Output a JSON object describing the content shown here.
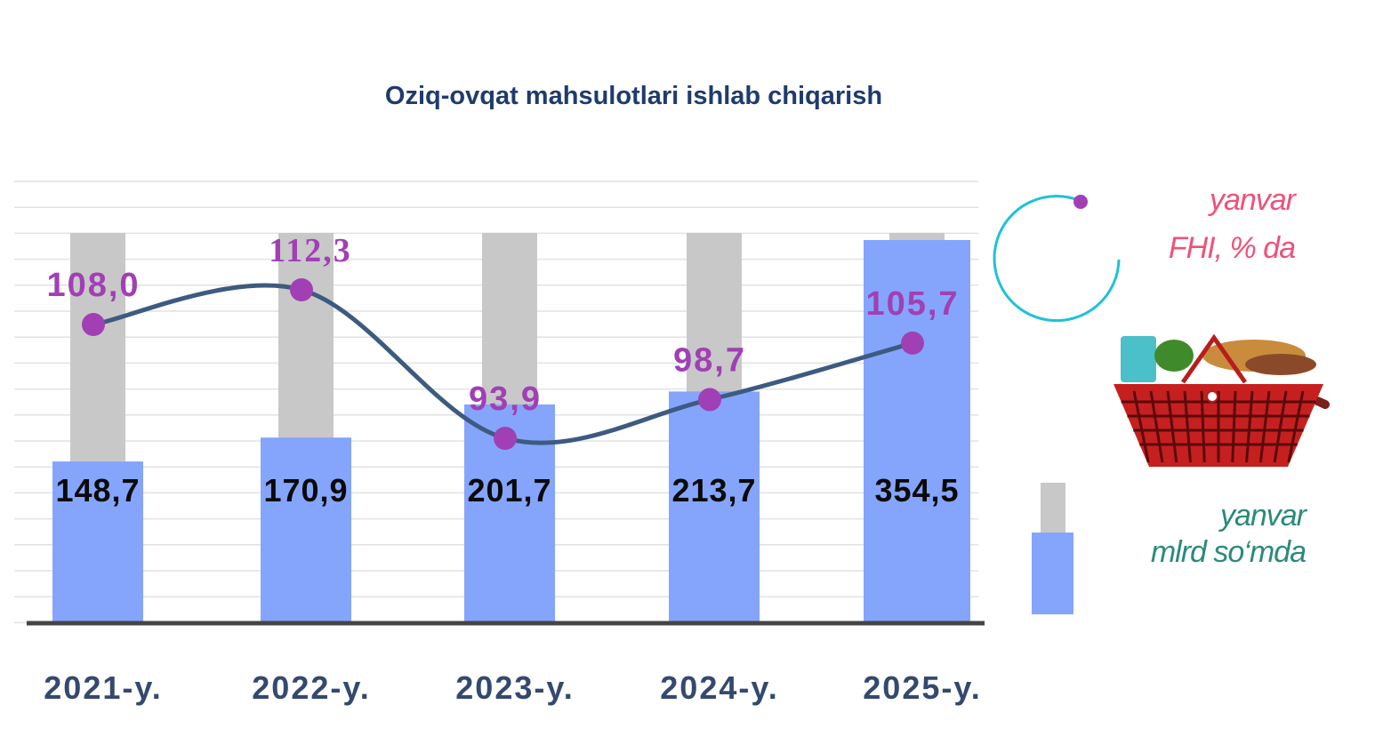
{
  "chart_data": {
    "type": "bar",
    "title": "Oziq-ovqat mahsulotlari ishlab chiqarish",
    "categories": [
      "2021-y.",
      "2022-y.",
      "2023-y.",
      "2024-y.",
      "2025-y."
    ],
    "series": [
      {
        "name": "yanvar mlrd so‘mda",
        "kind": "bar",
        "values": [
          148.7,
          170.9,
          201.7,
          213.7,
          354.5
        ],
        "labels": [
          "148,7",
          "170,9",
          "201,7",
          "213,7",
          "354,5"
        ],
        "color": "#85a5fc",
        "background_color": "#c8c8c8"
      },
      {
        "name": "yanvar FHI, % da",
        "kind": "line",
        "values": [
          108.0,
          112.3,
          93.9,
          98.7,
          105.7
        ],
        "labels": [
          "108,0",
          "112,3",
          "93,9",
          "98,7",
          "105,7"
        ],
        "color": "#3d5a80",
        "marker_color": "#a040b4",
        "label_color": "#a040b4"
      }
    ],
    "grid": true,
    "legend_position": "right"
  },
  "legend": {
    "line_line1": "yanvar",
    "line_line2": "FHI, % da",
    "bar_line1": "yanvar",
    "bar_line2": "mlrd so‘mda"
  },
  "icons": {
    "basket": "grocery-basket-icon",
    "circle": "ring-icon"
  }
}
